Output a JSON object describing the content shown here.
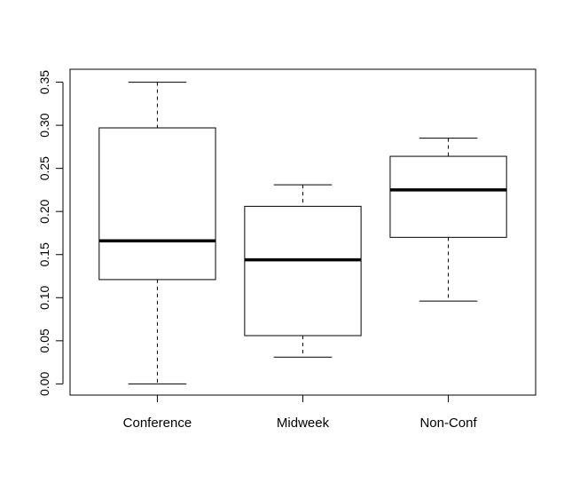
{
  "chart_data": {
    "type": "boxplot",
    "title": "",
    "xlabel": "",
    "ylabel": "",
    "ylim": [
      -0.013,
      0.365
    ],
    "yticks": [
      0.0,
      0.05,
      0.1,
      0.15,
      0.2,
      0.25,
      0.3,
      0.35
    ],
    "ytick_labels": [
      "0.00",
      "0.05",
      "0.10",
      "0.15",
      "0.20",
      "0.25",
      "0.30",
      "0.35"
    ],
    "categories": [
      "Conference",
      "Midweek",
      "Non-Conf"
    ],
    "boxes": [
      {
        "category": "Conference",
        "min": 0.0,
        "q1": 0.121,
        "median": 0.166,
        "q3": 0.297,
        "max": 0.35
      },
      {
        "category": "Midweek",
        "min": 0.031,
        "q1": 0.056,
        "median": 0.144,
        "q3": 0.206,
        "max": 0.231
      },
      {
        "category": "Non-Conf",
        "min": 0.096,
        "q1": 0.17,
        "median": 0.225,
        "q3": 0.264,
        "max": 0.285
      }
    ],
    "grid": false,
    "legend": "none"
  }
}
